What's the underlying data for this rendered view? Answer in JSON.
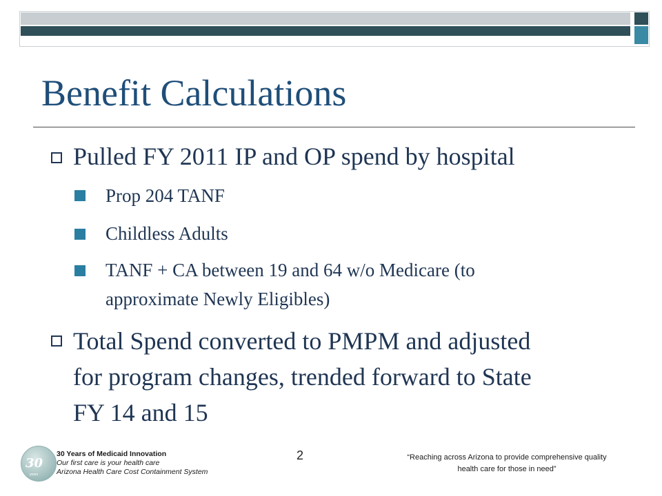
{
  "slide": {
    "title": "Benefit Calculations",
    "bullets": [
      {
        "text": "Pulled FY 2011 IP and OP spend by hospital",
        "sub": [
          "Prop 204 TANF",
          "Childless Adults",
          "TANF + CA between 19 and 64 w/o Medicare (to",
          "approximate Newly Eligibles)"
        ]
      },
      {
        "lines": [
          "Total Spend converted to PMPM and adjusted",
          "for program changes, trended forward to State",
          "FY 14 and 15"
        ]
      }
    ]
  },
  "footer": {
    "logo_text": "30",
    "logo_sub": "years",
    "org_line1": "30 Years of Medicaid Innovation",
    "org_line2": "Our first care is your health care",
    "org_line3": "Arizona Health Care Cost Containment System",
    "page_number": "2",
    "tagline_line1": "“Reaching across Arizona to provide comprehensive quality",
    "tagline_line2": "health care for those in need”"
  },
  "colors": {
    "title": "#1f4e79",
    "body_text": "#1f3553",
    "bar_dark": "#2f4f59",
    "bar_light": "#c7cdd1",
    "bar_teal": "#3a8aa5",
    "sub_bullet": "#2a7ea2"
  }
}
